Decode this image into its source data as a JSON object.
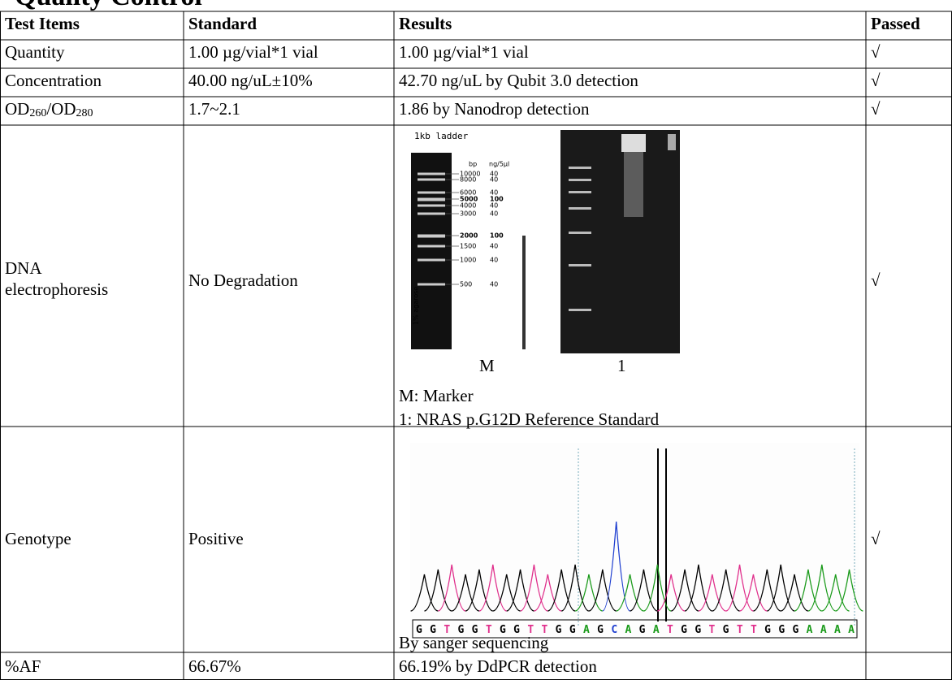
{
  "title": "Quality Control",
  "table": {
    "header": [
      "Test Items",
      "Standard",
      "Results",
      "Passed"
    ],
    "rows": [
      [
        "Quantity",
        "1.00 µg/vial*1 vial",
        "1.00 µg/vial*1 vial",
        "√"
      ],
      [
        "Concentration",
        "40.00 ng/uL±10%",
        "42.70 ng/uL by Qubit 3.0 detection",
        "√"
      ],
      [
        [
          "OD",
          "260",
          "/OD",
          "280"
        ],
        "1.7~2.1",
        "1.86 by Nanodrop detection",
        "√"
      ],
      [
        [
          "DNA",
          "electrophoresis"
        ],
        "No Degradation",
        {
          "ladder_title": "1kb ladder",
          "bp": "bp",
          "ng": "ng/5µl",
          "bands": [
            [
              "10000",
              "40"
            ],
            [
              "8000",
              "40"
            ],
            [
              "6000",
              "40"
            ],
            [
              "5000",
              "100"
            ],
            [
              "4000",
              "40"
            ],
            [
              "3000",
              "40"
            ],
            [
              "2000",
              "100"
            ],
            [
              "1500",
              "40"
            ],
            [
              "1000",
              "40"
            ],
            [
              "500",
              "40"
            ]
          ],
          "agarose": "1% agarose",
          "lanes": [
            "M",
            "1"
          ],
          "legend": [
            "M: Marker",
            "1: NRAS p.G12D Reference Standard"
          ]
        },
        "√"
      ],
      [
        "Genotype",
        "Positive",
        {
          "sequence": "GGTGGTGGTTGGAGCAGATGGTGTTGGGAAAA",
          "caption": "By sanger sequencing"
        },
        "√"
      ],
      [
        "%AF",
        "66.67%",
        "66.19% by DdPCR detection",
        ""
      ]
    ]
  }
}
